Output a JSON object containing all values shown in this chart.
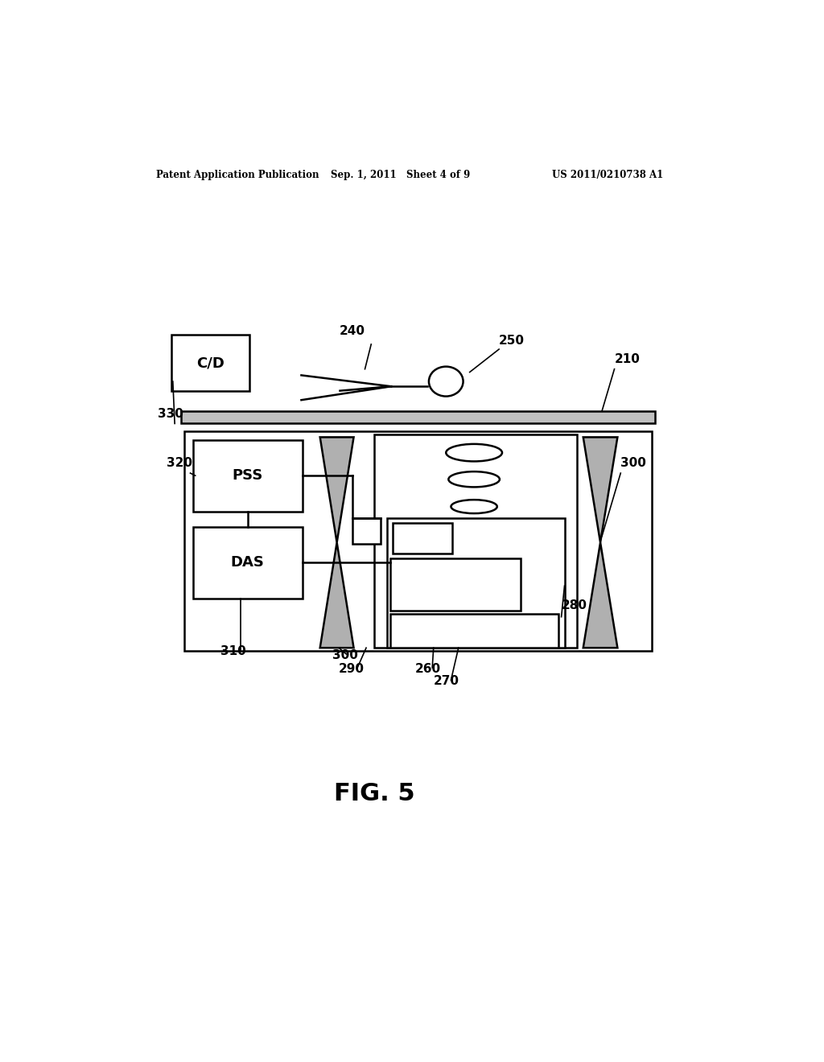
{
  "bg_color": "#ffffff",
  "lc": "#000000",
  "header_left": "Patent Application Publication",
  "header_mid": "Sep. 1, 2011   Sheet 4 of 9",
  "header_right": "US 2011/0210738 A1",
  "fig_label": "FIG. 5",
  "lw": 1.8
}
